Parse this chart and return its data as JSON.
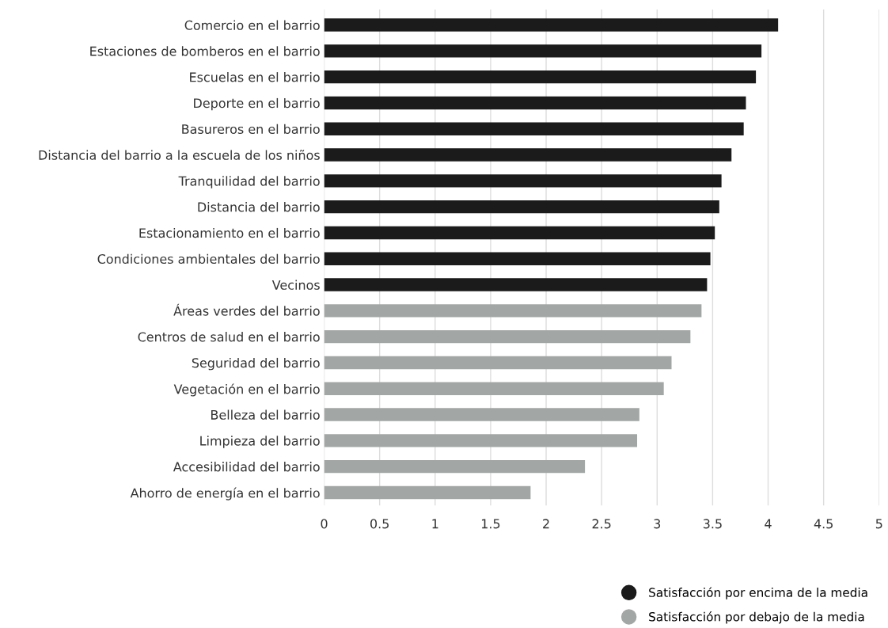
{
  "chart_data": {
    "type": "bar",
    "orientation": "horizontal",
    "categories": [
      "Comercio en el barrio",
      "Estaciones de bomberos en el barrio",
      "Escuelas en el barrio",
      "Deporte en el barrio",
      "Basureros en el barrio",
      "Distancia del barrio a la escuela de los niños",
      "Tranquilidad del barrio",
      "Distancia del barrio",
      "Estacionamiento en el barrio",
      "Condiciones ambientales del barrio",
      "Vecinos",
      "Áreas verdes del barrio",
      "Centros de salud en el barrio",
      "Seguridad del barrio",
      "Vegetación en el barrio",
      "Belleza del barrio",
      "Limpieza del barrio",
      "Accesibilidad del barrio",
      "Ahorro de energía en el barrio"
    ],
    "series": [
      {
        "name": "Satisfacción por encima de la media",
        "color": "#1b1b1b",
        "values": [
          4.09,
          3.94,
          3.89,
          3.8,
          3.78,
          3.67,
          3.58,
          3.56,
          3.52,
          3.48,
          3.45,
          null,
          null,
          null,
          null,
          null,
          null,
          null,
          null
        ]
      },
      {
        "name": "Satisfacción por debajo de la media",
        "color": "#a2a7a5",
        "values": [
          null,
          null,
          null,
          null,
          null,
          null,
          null,
          null,
          null,
          null,
          null,
          3.4,
          3.3,
          3.13,
          3.06,
          2.84,
          2.82,
          2.35,
          1.86
        ]
      }
    ],
    "xlim": [
      0,
      5
    ],
    "xticks": [
      0,
      {
        "value": 0.5,
        "label": "0.5"
      },
      1,
      {
        "value": 1.5,
        "label": "1.5"
      },
      2,
      {
        "value": 2.5,
        "label": "2.5"
      },
      3,
      {
        "value": 3.5,
        "label": "3.5"
      },
      4,
      {
        "value": 4.5,
        "label": "4.5"
      },
      5
    ],
    "grid": "x",
    "legend": "bottom right"
  }
}
